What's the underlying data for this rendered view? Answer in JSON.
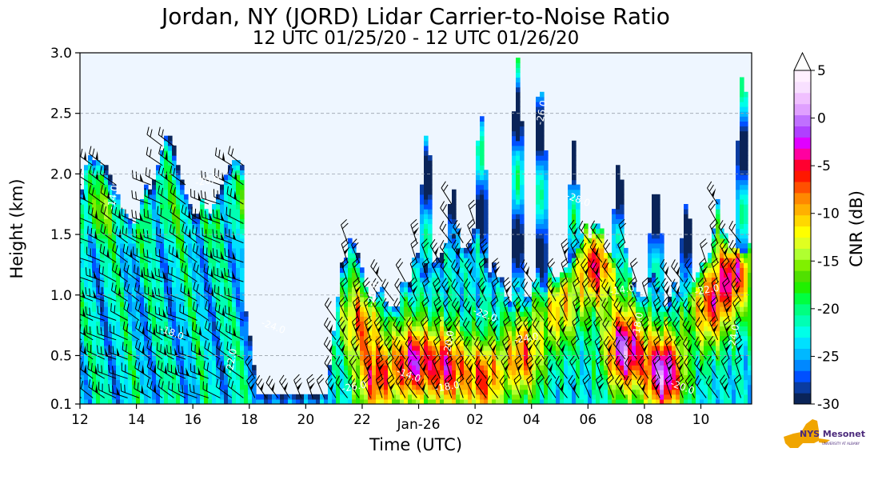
{
  "chart_data": {
    "type": "heatmap",
    "title": "Jordan, NY (JORD) Lidar Carrier-to-Noise Ratio",
    "subtitle": "12 UTC 01/25/20 - 12 UTC 01/26/20",
    "xlabel": "Time (UTC)",
    "ylabel": "Height (km)",
    "x_ticks": [
      "12",
      "14",
      "16",
      "18",
      "20",
      "22",
      "Jan-26",
      "02",
      "04",
      "06",
      "08",
      "10"
    ],
    "x_tick_hours": [
      12,
      14,
      16,
      18,
      20,
      22,
      24,
      26,
      28,
      30,
      32,
      34
    ],
    "xlim_hours": [
      12,
      35.8
    ],
    "y_ticks": [
      "0.1",
      "0.5",
      "1.0",
      "1.5",
      "2.0",
      "2.5",
      "3.0"
    ],
    "y_tick_values": [
      0.1,
      0.5,
      1.0,
      1.5,
      2.0,
      2.5,
      3.0
    ],
    "ylim": [
      0.1,
      3.0
    ],
    "grid": "horizontal dashed",
    "colorbar": {
      "label": "CNR (dB)",
      "ticks": [
        "5",
        "0",
        "-5",
        "-10",
        "-15",
        "-20",
        "-25",
        "-30"
      ],
      "tick_values": [
        5,
        0,
        -5,
        -10,
        -15,
        -20,
        -25,
        -30
      ],
      "range": [
        -30,
        5
      ],
      "colors": [
        "#0a2458",
        "#0a3ca0",
        "#0050ff",
        "#0088ff",
        "#00b8ff",
        "#00e0ff",
        "#00ffe8",
        "#00ffb4",
        "#00ff80",
        "#00ff40",
        "#20f000",
        "#50e000",
        "#80f000",
        "#b0ff30",
        "#e0ff20",
        "#ffff00",
        "#ffd800",
        "#ffb000",
        "#ff8800",
        "#ff5000",
        "#ff1800",
        "#ff0030",
        "#ff00a0",
        "#e000ff",
        "#b040ff",
        "#c070ff",
        "#e0a0ff",
        "#f0c0ff",
        "#f8e0ff",
        "#fff0ff"
      ]
    },
    "contour_labels": [
      "-14.0",
      "-18.0",
      "-20.0",
      "-22.0",
      "-24.0",
      "-26.0",
      "-28.0"
    ],
    "background_color": "#eef6ff"
  },
  "logo": {
    "text": "NYS Mesonet",
    "subtext": "UNIVERSITY AT ALBANY"
  }
}
